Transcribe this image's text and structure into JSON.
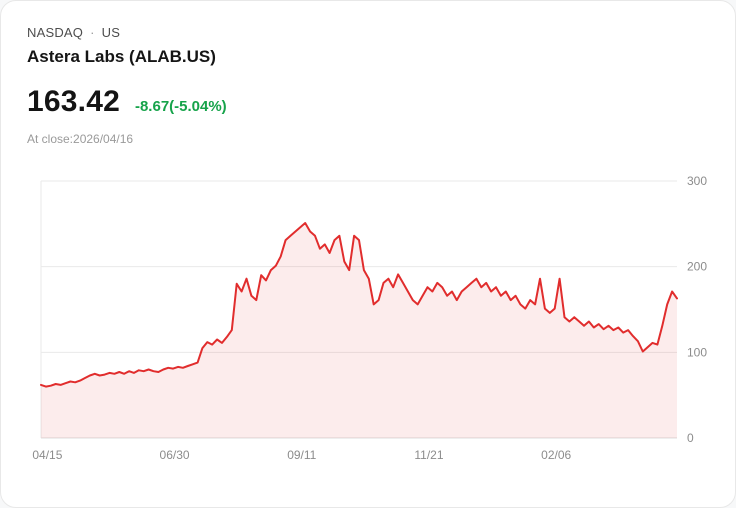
{
  "header": {
    "exchange": "NASDAQ",
    "separator": "·",
    "region": "US",
    "title": "Astera Labs (ALAB.US)",
    "price": "163.42",
    "change": "-8.67(-5.04%)",
    "close_label": "At close:2026/04/16"
  },
  "colors": {
    "line": "#e12d2d",
    "area": "rgba(226,45,45,0.09)",
    "change_green": "#16a34a",
    "grid": "#eaeaea",
    "baseline": "#dcdcdc",
    "axis_text": "#8c8c8c"
  },
  "chart_data": {
    "type": "area",
    "ylim": [
      0,
      300
    ],
    "y_ticks": [
      0,
      100,
      200,
      300
    ],
    "x_ticks": [
      {
        "label": "04/15",
        "f": 0.01
      },
      {
        "label": "06/30",
        "f": 0.21
      },
      {
        "label": "09/11",
        "f": 0.41
      },
      {
        "label": "11/21",
        "f": 0.61
      },
      {
        "label": "02/06",
        "f": 0.81
      }
    ],
    "values": [
      62,
      60,
      61,
      63,
      62,
      64,
      66,
      65,
      67,
      70,
      73,
      75,
      73,
      74,
      76,
      75,
      77,
      75,
      78,
      76,
      79,
      78,
      80,
      78,
      77,
      80,
      82,
      81,
      83,
      82,
      84,
      86,
      88,
      105,
      112,
      109,
      115,
      111,
      118,
      126,
      180,
      171,
      186,
      166,
      161,
      190,
      184,
      196,
      201,
      212,
      231,
      236,
      241,
      246,
      251,
      241,
      236,
      221,
      226,
      216,
      231,
      236,
      206,
      196,
      236,
      231,
      196,
      186,
      156,
      161,
      181,
      186,
      176,
      191,
      181,
      171,
      161,
      156,
      166,
      176,
      171,
      181,
      176,
      166,
      171,
      161,
      171,
      176,
      181,
      186,
      176,
      181,
      171,
      176,
      166,
      171,
      161,
      166,
      156,
      151,
      161,
      156,
      186,
      151,
      146,
      151,
      186,
      141,
      136,
      141,
      136,
      131,
      136,
      129,
      133,
      127,
      131,
      126,
      129,
      123,
      126,
      119,
      113,
      101,
      106,
      111,
      109,
      131,
      156,
      171,
      163
    ]
  }
}
